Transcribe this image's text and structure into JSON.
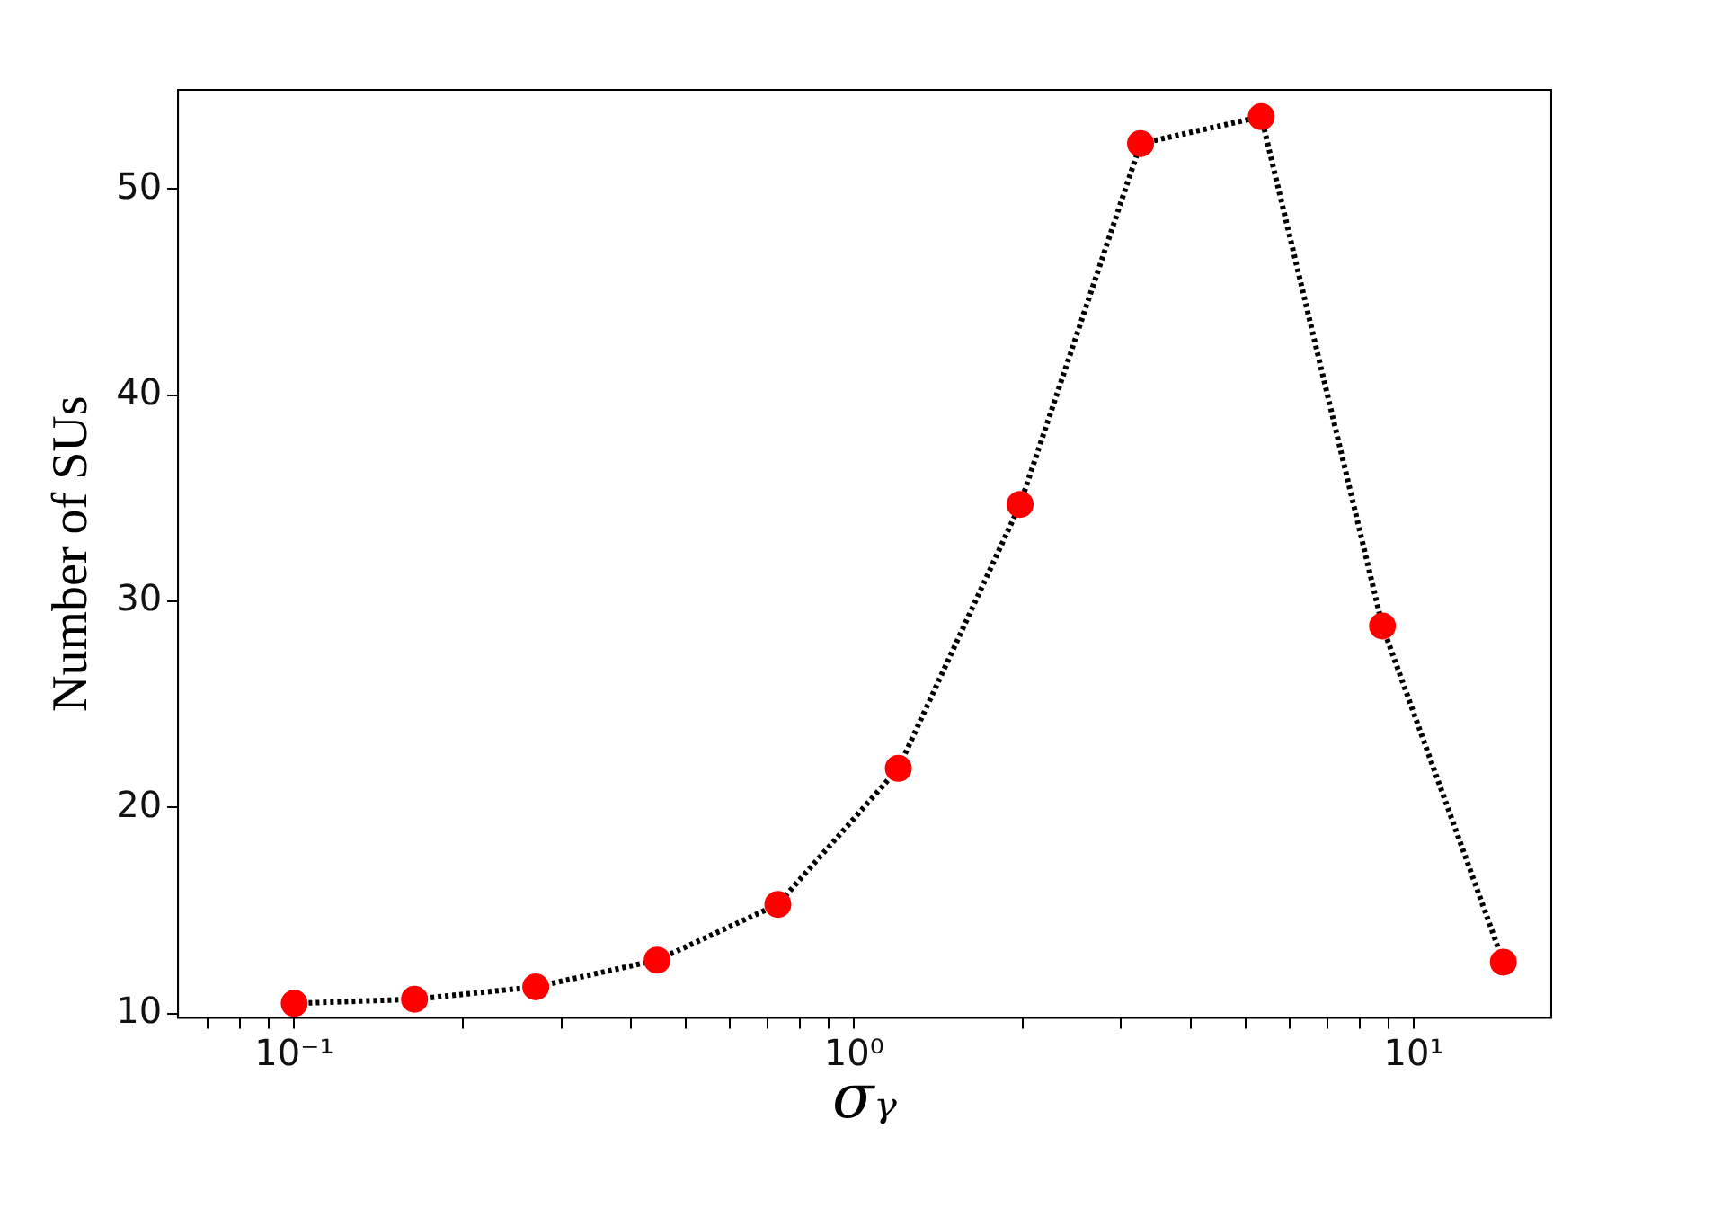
{
  "chart_data": {
    "type": "line",
    "xlabel": "σᵧ",
    "ylabel": "Number of SUs",
    "x": [
      0.1,
      0.164,
      0.27,
      0.445,
      0.731,
      1.2,
      1.98,
      3.25,
      5.34,
      8.79,
      14.45
    ],
    "series": [
      {
        "color": "#ff0000",
        "values": [
          10.5,
          10.7,
          11.3,
          12.6,
          15.3,
          21.9,
          34.7,
          52.2,
          53.5,
          28.8,
          12.5
        ]
      }
    ],
    "log": "x",
    "marker": "circle",
    "line_style": "dotted",
    "grid": false,
    "legend": false,
    "xlim": [
      0.062,
      17.6
    ],
    "ylim": [
      9.8,
      54.8
    ],
    "xticks": [
      {
        "value": 0.07,
        "label": null
      },
      {
        "value": 0.08,
        "label": null
      },
      {
        "value": 0.09,
        "label": null
      },
      {
        "value": 0.1,
        "label": "10⁻¹"
      },
      {
        "value": 0.2,
        "label": null
      },
      {
        "value": 0.3,
        "label": null
      },
      {
        "value": 0.4,
        "label": null
      },
      {
        "value": 0.5,
        "label": null
      },
      {
        "value": 0.6,
        "label": null
      },
      {
        "value": 0.7,
        "label": null
      },
      {
        "value": 0.8,
        "label": null
      },
      {
        "value": 0.9,
        "label": null
      },
      {
        "value": 1,
        "label": "10⁰"
      },
      {
        "value": 2,
        "label": null
      },
      {
        "value": 3,
        "label": null
      },
      {
        "value": 4,
        "label": null
      },
      {
        "value": 5,
        "label": null
      },
      {
        "value": 6,
        "label": null
      },
      {
        "value": 7,
        "label": null
      },
      {
        "value": 8,
        "label": null
      },
      {
        "value": 9,
        "label": null
      },
      {
        "value": 10,
        "label": "10¹"
      }
    ],
    "yticks": [
      10,
      20,
      30,
      40,
      50
    ]
  }
}
